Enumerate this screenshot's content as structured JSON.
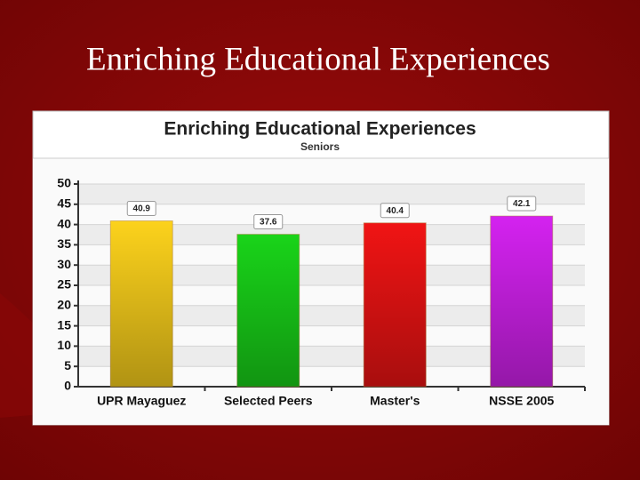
{
  "slide_title": "Enriching Educational Experiences",
  "chart_data": {
    "type": "bar",
    "title": "Enriching Educational Experiences",
    "subtitle": "Seniors",
    "categories": [
      "UPR Mayaguez",
      "Selected Peers",
      "Master's",
      "NSSE 2005"
    ],
    "values": [
      40.9,
      37.6,
      40.4,
      42.1
    ],
    "colors": [
      "#fcd21c",
      "#19d419",
      "#f01414",
      "#d422f0"
    ],
    "ylim": [
      0,
      50
    ],
    "yticks": [
      0,
      5,
      10,
      15,
      20,
      25,
      30,
      35,
      40,
      45,
      50
    ],
    "grid": true
  }
}
